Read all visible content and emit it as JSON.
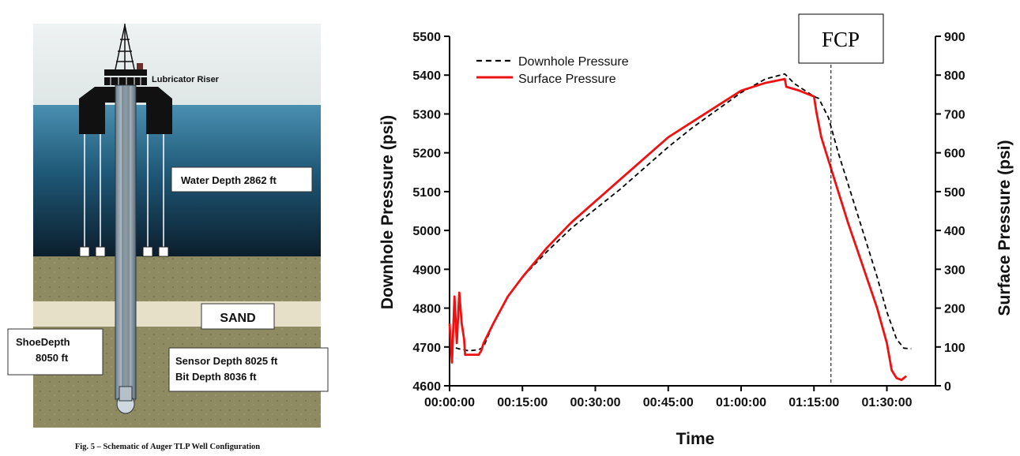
{
  "schematic": {
    "label_lubricator": "Lubricator Riser",
    "label_water_depth": "Water Depth 2862 ft",
    "label_sand": "SAND",
    "label_shoe_line1": "ShoeDepth",
    "label_shoe_line2": "8050 ft",
    "label_sensor": "Sensor Depth 8025 ft",
    "label_bit": "Bit Depth 8036 ft",
    "caption": "Fig. 5 – Schematic of Auger TLP Well Configuration",
    "colors": {
      "water_top": "#4a8fb0",
      "water_bottom": "#0d2230",
      "sediment": "#8e8a62",
      "sand": "#e6e0c8",
      "platform": "#111111"
    }
  },
  "chart_data": {
    "type": "line",
    "xlabel": "Time",
    "ylabel": "Downhole Pressure (psi)",
    "y2label": "Surface Pressure (psi)",
    "xlim": [
      0,
      100
    ],
    "ylim": [
      4600,
      5500
    ],
    "y2lim": [
      0,
      900
    ],
    "x_ticks": [
      {
        "value": 0,
        "label": "00:00:00"
      },
      {
        "value": 15,
        "label": "00:15:00"
      },
      {
        "value": 30,
        "label": "00:30:00"
      },
      {
        "value": 45,
        "label": "00:45:00"
      },
      {
        "value": 60,
        "label": "01:00:00"
      },
      {
        "value": 75,
        "label": "01:15:00"
      },
      {
        "value": 90,
        "label": "01:30:00"
      }
    ],
    "y_ticks": [
      4600,
      4700,
      4800,
      4900,
      5000,
      5100,
      5200,
      5300,
      5400,
      5500
    ],
    "y2_ticks": [
      0,
      100,
      200,
      300,
      400,
      500,
      600,
      700,
      800,
      900
    ],
    "annotation": {
      "label": "FCP",
      "x": 78.5
    },
    "legend_position": "top-left",
    "series": [
      {
        "name": "Downhole Pressure",
        "axis": "left",
        "style": "dashed",
        "color": "#000000",
        "points": [
          [
            0,
            4730
          ],
          [
            0.5,
            4700
          ],
          [
            2,
            4695
          ],
          [
            4,
            4690
          ],
          [
            6,
            4693
          ],
          [
            7,
            4700
          ],
          [
            9,
            4760
          ],
          [
            12,
            4830
          ],
          [
            15,
            4880
          ],
          [
            20,
            4945
          ],
          [
            25,
            5005
          ],
          [
            30,
            5055
          ],
          [
            35,
            5105
          ],
          [
            40,
            5160
          ],
          [
            45,
            5215
          ],
          [
            50,
            5265
          ],
          [
            55,
            5310
          ],
          [
            60,
            5355
          ],
          [
            65,
            5390
          ],
          [
            69,
            5403
          ],
          [
            71,
            5378
          ],
          [
            75,
            5345
          ],
          [
            76,
            5340
          ],
          [
            78,
            5290
          ],
          [
            80,
            5200
          ],
          [
            82,
            5120
          ],
          [
            85,
            5000
          ],
          [
            88,
            4880
          ],
          [
            90,
            4790
          ],
          [
            92,
            4720
          ],
          [
            93.5,
            4697
          ],
          [
            95,
            4695
          ]
        ]
      },
      {
        "name": "Surface Pressure",
        "axis": "right",
        "style": "solid",
        "color": "#ee1111",
        "points": [
          [
            0,
            160
          ],
          [
            0.5,
            60
          ],
          [
            1,
            230
          ],
          [
            1.5,
            110
          ],
          [
            2,
            240
          ],
          [
            2.5,
            160
          ],
          [
            3,
            120
          ],
          [
            3.2,
            80
          ],
          [
            4,
            80
          ],
          [
            6,
            80
          ],
          [
            6.5,
            90
          ],
          [
            7,
            110
          ],
          [
            9,
            160
          ],
          [
            12,
            230
          ],
          [
            15,
            280
          ],
          [
            20,
            355
          ],
          [
            25,
            420
          ],
          [
            30,
            475
          ],
          [
            35,
            530
          ],
          [
            40,
            585
          ],
          [
            45,
            640
          ],
          [
            50,
            680
          ],
          [
            55,
            720
          ],
          [
            60,
            760
          ],
          [
            65,
            780
          ],
          [
            69,
            790
          ],
          [
            69.3,
            770
          ],
          [
            72,
            760
          ],
          [
            75,
            745
          ],
          [
            75.5,
            705
          ],
          [
            76.5,
            640
          ],
          [
            78,
            580
          ],
          [
            80,
            500
          ],
          [
            82,
            420
          ],
          [
            85,
            310
          ],
          [
            88,
            200
          ],
          [
            90,
            110
          ],
          [
            91,
            40
          ],
          [
            92,
            20
          ],
          [
            93,
            15
          ],
          [
            94,
            25
          ]
        ]
      }
    ]
  }
}
